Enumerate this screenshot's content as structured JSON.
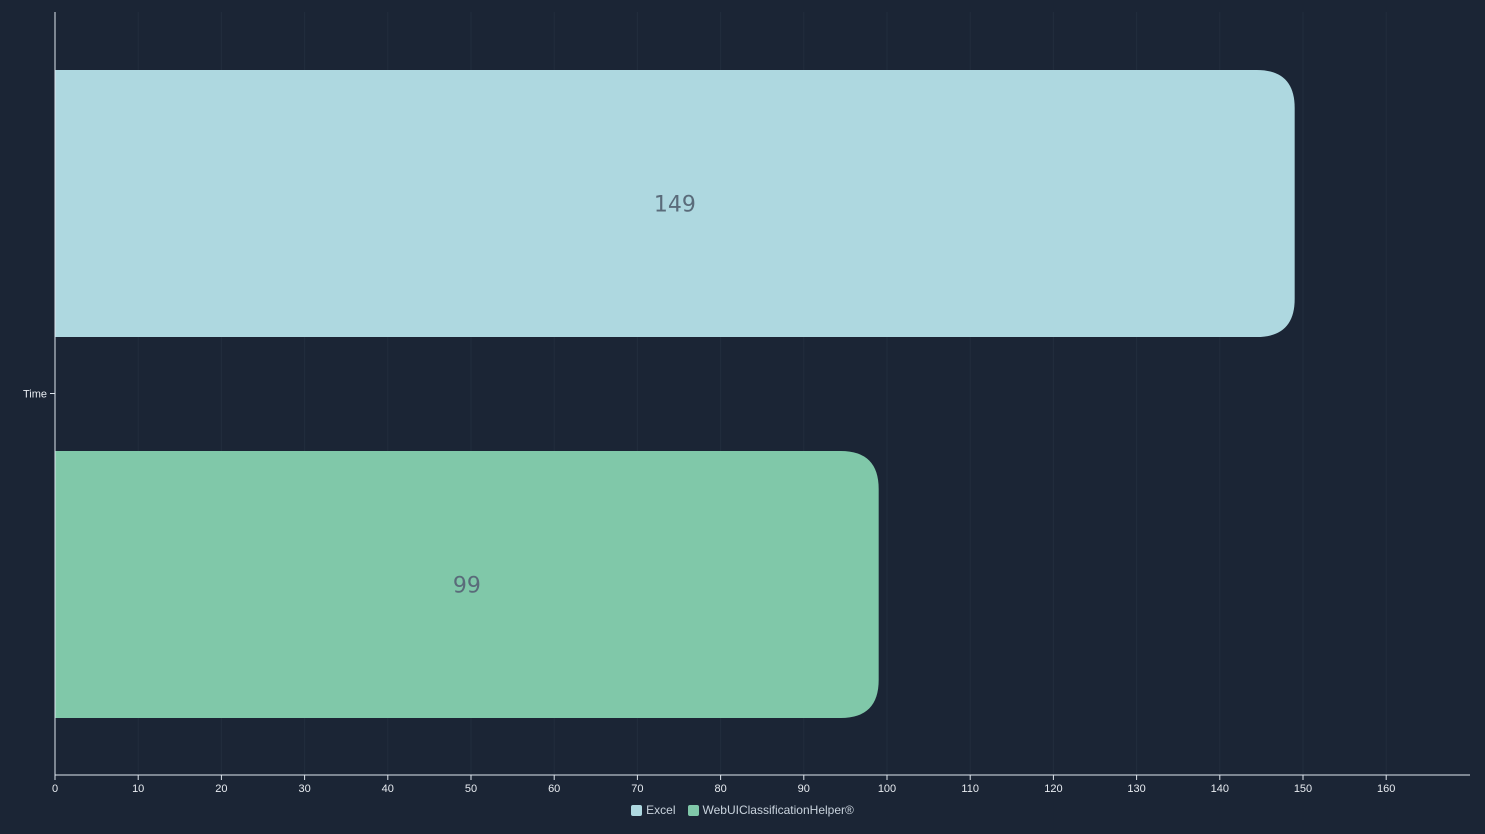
{
  "chart_data": {
    "type": "bar",
    "orientation": "horizontal",
    "categories": [
      "Time"
    ],
    "series": [
      {
        "name": "Excel",
        "values": [
          149
        ],
        "color": "#aed8e0"
      },
      {
        "name": "WebUIClassificationHelper®",
        "values": [
          99
        ],
        "color": "#80c8a9"
      }
    ],
    "xlim": [
      0,
      170
    ],
    "xticks": [
      0,
      10,
      20,
      30,
      40,
      50,
      60,
      70,
      80,
      90,
      100,
      110,
      120,
      130,
      140,
      150,
      160
    ],
    "grid": true,
    "legend_position": "bottom-center",
    "data_labels": [
      "149",
      "99"
    ]
  },
  "colors": {
    "background": "#1b2535",
    "axis": "#dfe6ee",
    "grid": "#222d3d",
    "data_label": "#5a6b7a"
  }
}
